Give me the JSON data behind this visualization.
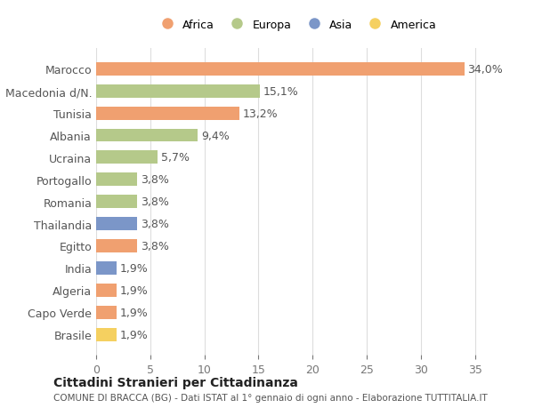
{
  "categories": [
    "Marocco",
    "Macedonia d/N.",
    "Tunisia",
    "Albania",
    "Ucraina",
    "Portogallo",
    "Romania",
    "Thailandia",
    "Egitto",
    "India",
    "Algeria",
    "Capo Verde",
    "Brasile"
  ],
  "values": [
    34.0,
    15.1,
    13.2,
    9.4,
    5.7,
    3.8,
    3.8,
    3.8,
    3.8,
    1.9,
    1.9,
    1.9,
    1.9
  ],
  "labels": [
    "34,0%",
    "15,1%",
    "13,2%",
    "9,4%",
    "5,7%",
    "3,8%",
    "3,8%",
    "3,8%",
    "3,8%",
    "1,9%",
    "1,9%",
    "1,9%",
    "1,9%"
  ],
  "colors": [
    "#F0A070",
    "#B5C98A",
    "#F0A070",
    "#B5C98A",
    "#B5C98A",
    "#B5C98A",
    "#B5C98A",
    "#7B96C8",
    "#F0A070",
    "#7B96C8",
    "#F0A070",
    "#F0A070",
    "#F5D060"
  ],
  "legend_labels": [
    "Africa",
    "Europa",
    "Asia",
    "America"
  ],
  "legend_colors": [
    "#F0A070",
    "#B5C98A",
    "#7B96C8",
    "#F5D060"
  ],
  "xlim": [
    0,
    37
  ],
  "xticks": [
    0,
    5,
    10,
    15,
    20,
    25,
    30,
    35
  ],
  "title": "Cittadini Stranieri per Cittadinanza",
  "subtitle": "COMUNE DI BRACCA (BG) - Dati ISTAT al 1° gennaio di ogni anno - Elaborazione TUTTITALIA.IT",
  "bg_color": "#ffffff",
  "grid_color": "#dddddd",
  "bar_height": 0.6,
  "label_fontsize": 9,
  "tick_fontsize": 9
}
